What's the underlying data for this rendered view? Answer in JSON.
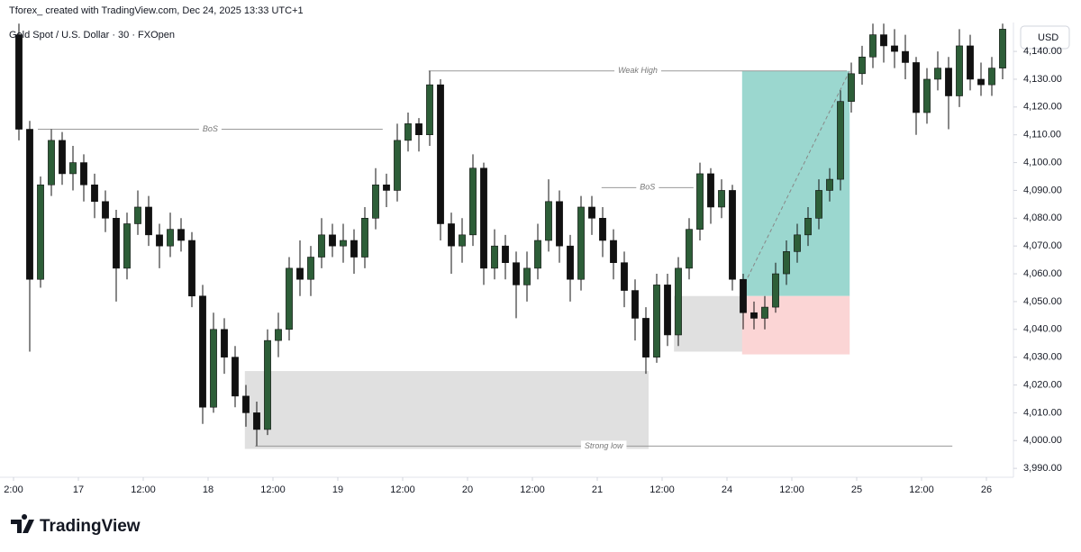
{
  "chart_data": {
    "type": "candlestick",
    "credit": "Tforex_ created with TradingView.com, Dec 24, 2025 13:33 UTC+1",
    "title": "Gold Spot / U.S. Dollar · 30 · FXOpen",
    "currency": "USD",
    "brand": "TradingView",
    "up_color": "#2d5e38",
    "down_color": "#111111",
    "grid": false,
    "xlim": [
      -14.5,
      173
    ],
    "ylim": [
      3986.8,
      4150.4
    ],
    "xticks": [
      {
        "value": -12,
        "label": "2:00"
      },
      {
        "value": 0,
        "label": "17"
      },
      {
        "value": 12,
        "label": "12:00"
      },
      {
        "value": 24,
        "label": "18"
      },
      {
        "value": 36,
        "label": "12:00"
      },
      {
        "value": 48,
        "label": "19"
      },
      {
        "value": 60,
        "label": "12:00"
      },
      {
        "value": 72,
        "label": "20"
      },
      {
        "value": 84,
        "label": "12:00"
      },
      {
        "value": 96,
        "label": "21"
      },
      {
        "value": 108,
        "label": "12:00"
      },
      {
        "value": 120,
        "label": "24"
      },
      {
        "value": 132,
        "label": "12:00"
      },
      {
        "value": 144,
        "label": "25"
      },
      {
        "value": 156,
        "label": "12:00"
      },
      {
        "value": 168,
        "label": "26"
      }
    ],
    "yticks": [
      {
        "value": 3990,
        "label": "3,990.00"
      },
      {
        "value": 4000,
        "label": "4,000.00"
      },
      {
        "value": 4010,
        "label": "4,010.00"
      },
      {
        "value": 4020,
        "label": "4,020.00"
      },
      {
        "value": 4030,
        "label": "4,030.00"
      },
      {
        "value": 4040,
        "label": "4,040.00"
      },
      {
        "value": 4050,
        "label": "4,050.00"
      },
      {
        "value": 4060,
        "label": "4,060.00"
      },
      {
        "value": 4070,
        "label": "4,070.00"
      },
      {
        "value": 4080,
        "label": "4,080.00"
      },
      {
        "value": 4090,
        "label": "4,090.00"
      },
      {
        "value": 4100,
        "label": "4,100.00"
      },
      {
        "value": 4110,
        "label": "4,110.00"
      },
      {
        "value": 4120,
        "label": "4,120.00"
      },
      {
        "value": 4130,
        "label": "4,130.00"
      },
      {
        "value": 4140,
        "label": "4,140.00"
      }
    ],
    "x": [
      -11,
      -9,
      -7,
      -5,
      -3,
      -1,
      1,
      3,
      5,
      7,
      9,
      11,
      13,
      15,
      17,
      19,
      21,
      23,
      25,
      27,
      29,
      31,
      33,
      35,
      37,
      39,
      41,
      43,
      45,
      47,
      49,
      51,
      53,
      55,
      57,
      59,
      61,
      63,
      65,
      67,
      69,
      71,
      73,
      75,
      77,
      79,
      81,
      83,
      85,
      87,
      89,
      91,
      93,
      95,
      97,
      99,
      101,
      103,
      105,
      107,
      109,
      111,
      113,
      115,
      117,
      119,
      121,
      123,
      125,
      127,
      129,
      131,
      133,
      135,
      137,
      139,
      141,
      143,
      145,
      147,
      149,
      151,
      153,
      155,
      157,
      159,
      161,
      163,
      165,
      167,
      169,
      171
    ],
    "open": [
      4146,
      4112,
      4058,
      4092,
      4108,
      4096,
      4100,
      4092,
      4086,
      4080,
      4062,
      4078,
      4084,
      4074,
      4070,
      4076,
      4072,
      4052,
      4012,
      4040,
      4030,
      4016,
      4010,
      4004,
      4036,
      4040,
      4062,
      4058,
      4066,
      4074,
      4070,
      4072,
      4066,
      4080,
      4092,
      4090,
      4108,
      4114,
      4110,
      4128,
      4078,
      4070,
      4074,
      4098,
      4062,
      4070,
      4064,
      4056,
      4062,
      4072,
      4086,
      4070,
      4058,
      4084,
      4080,
      4072,
      4064,
      4054,
      4044,
      4030,
      4056,
      4038,
      4062,
      4076,
      4096,
      4084,
      4090,
      4058,
      4046,
      4044,
      4048,
      4060,
      4068,
      4074,
      4080,
      4090,
      4094,
      4122,
      4132,
      4138,
      4146,
      4142,
      4140,
      4136,
      4118,
      4130,
      4134,
      4124,
      4142,
      4130,
      4128,
      4134
    ],
    "high": [
      4150,
      4115,
      4095,
      4112,
      4111,
      4106,
      4103,
      4096,
      4090,
      4083,
      4082,
      4090,
      4088,
      4078,
      4082,
      4080,
      4075,
      4056,
      4046,
      4044,
      4034,
      4020,
      4014,
      4040,
      4046,
      4066,
      4072,
      4070,
      4080,
      4078,
      4078,
      4076,
      4084,
      4098,
      4096,
      4114,
      4118,
      4116,
      4133,
      4130,
      4082,
      4080,
      4103,
      4100,
      4076,
      4074,
      4068,
      4068,
      4078,
      4094,
      4090,
      4074,
      4088,
      4088,
      4084,
      4076,
      4068,
      4058,
      4048,
      4060,
      4060,
      4066,
      4080,
      4100,
      4098,
      4094,
      4092,
      4060,
      4050,
      4052,
      4064,
      4072,
      4078,
      4084,
      4094,
      4098,
      4126,
      4136,
      4142,
      4150,
      4150,
      4148,
      4146,
      4138,
      4134,
      4140,
      4138,
      4148,
      4146,
      4136,
      4138,
      4150
    ],
    "low": [
      4108,
      4032,
      4055,
      4088,
      4092,
      4090,
      4086,
      4080,
      4075,
      4050,
      4058,
      4074,
      4070,
      4062,
      4066,
      4068,
      4048,
      4006,
      4010,
      4024,
      4012,
      4005,
      3998,
      4002,
      4030,
      4036,
      4052,
      4052,
      4062,
      4066,
      4064,
      4060,
      4062,
      4076,
      4084,
      4086,
      4104,
      4104,
      4106,
      4072,
      4060,
      4064,
      4070,
      4056,
      4058,
      4058,
      4044,
      4050,
      4058,
      4068,
      4064,
      4050,
      4054,
      4074,
      4066,
      4058,
      4048,
      4036,
      4024,
      4028,
      4034,
      4034,
      4058,
      4072,
      4078,
      4080,
      4054,
      4040,
      4040,
      4040,
      4046,
      4056,
      4064,
      4070,
      4076,
      4086,
      4090,
      4118,
      4128,
      4134,
      4136,
      4134,
      4130,
      4110,
      4114,
      4126,
      4112,
      4120,
      4126,
      4124,
      4124,
      4130
    ],
    "close": [
      4112,
      4058,
      4092,
      4108,
      4096,
      4100,
      4092,
      4086,
      4080,
      4062,
      4078,
      4084,
      4074,
      4070,
      4076,
      4072,
      4052,
      4012,
      4040,
      4030,
      4016,
      4010,
      4004,
      4036,
      4040,
      4062,
      4058,
      4066,
      4074,
      4070,
      4072,
      4066,
      4080,
      4092,
      4090,
      4108,
      4114,
      4110,
      4128,
      4078,
      4070,
      4074,
      4098,
      4062,
      4070,
      4064,
      4056,
      4062,
      4072,
      4086,
      4070,
      4058,
      4084,
      4080,
      4072,
      4064,
      4054,
      4044,
      4030,
      4056,
      4038,
      4062,
      4076,
      4096,
      4084,
      4090,
      4058,
      4046,
      4044,
      4048,
      4060,
      4068,
      4074,
      4080,
      4090,
      4094,
      4122,
      4132,
      4138,
      4146,
      4142,
      4140,
      4136,
      4118,
      4130,
      4134,
      4124,
      4142,
      4130,
      4128,
      4134,
      4148
    ],
    "zones": [
      {
        "x": [
          30.8,
          105.5
        ],
        "y": [
          3997,
          4025
        ],
        "color": "#e0e0e0"
      },
      {
        "x": [
          110.2,
          123.5
        ],
        "y": [
          4032,
          4052
        ],
        "color": "#e0e0e0"
      }
    ],
    "position": {
      "x": [
        122.8,
        142.7
      ],
      "entry": 4052,
      "target": 4133,
      "stop": 4031,
      "profit_color": "#9bd7cf",
      "loss_color": "#fbd5d5"
    },
    "annotations": [
      {
        "label": "Weak High",
        "y": 4133,
        "x": [
          64.8,
          142.2
        ]
      },
      {
        "label": "BoS",
        "y": 4112,
        "x": [
          -7.5,
          56.3
        ]
      },
      {
        "label": "BoS",
        "y": 4091,
        "x": [
          96.8,
          113.8
        ]
      },
      {
        "label": "Strong low",
        "y": 3998,
        "x": [
          32.7,
          161.7
        ]
      }
    ]
  }
}
